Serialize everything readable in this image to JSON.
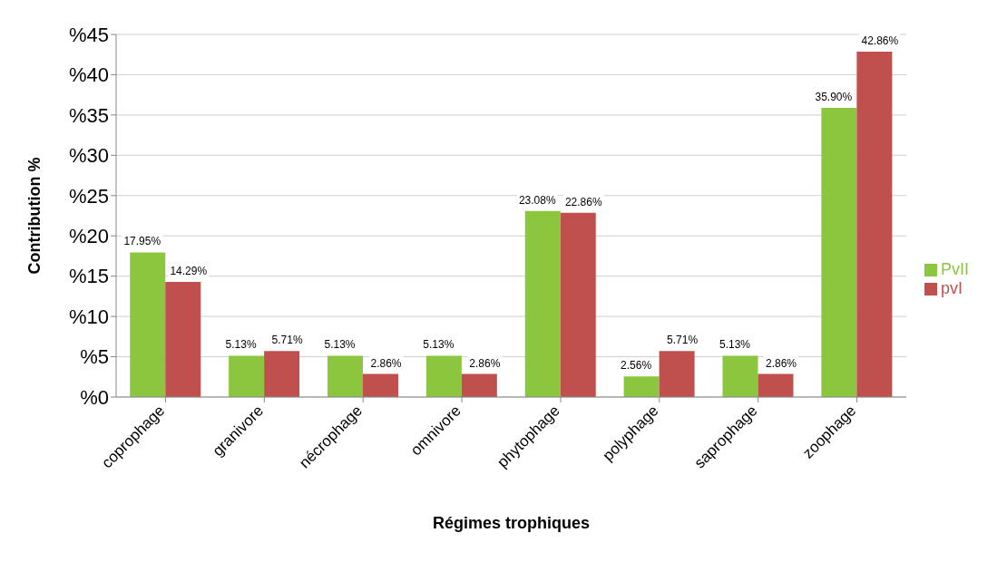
{
  "chart_data": {
    "type": "bar",
    "xlabel": "Régimes trophiques",
    "ylabel": "Contribution %",
    "categories": [
      "coprophage",
      "granivore",
      "nécrophage",
      "omnivore",
      "phytophage",
      "polyphage",
      "saprophage",
      "zoophage"
    ],
    "series": [
      {
        "name": "PvII",
        "color": "#8cc63f",
        "values": [
          17.95,
          5.13,
          5.13,
          5.13,
          23.08,
          2.56,
          5.13,
          35.9
        ],
        "value_labels": [
          "17.95%",
          "5.13%",
          "5.13%",
          "5.13%",
          "23.08%",
          "2.56%",
          "5.13%",
          "35.90%"
        ]
      },
      {
        "name": "pvI",
        "color": "#c0504d",
        "values": [
          14.29,
          5.71,
          2.86,
          2.86,
          22.86,
          5.71,
          2.86,
          42.86
        ],
        "value_labels": [
          "14.29%",
          "5.71%",
          "2.86%",
          "2.86%",
          "22.86%",
          "5.71%",
          "2.86%",
          "42.86%"
        ]
      }
    ],
    "ylim": [
      0,
      45
    ],
    "yticks": [
      {
        "value": 0,
        "label": "%0"
      },
      {
        "value": 5,
        "label": "%5"
      },
      {
        "value": 10,
        "label": "%10"
      },
      {
        "value": 15,
        "label": "%15"
      },
      {
        "value": 20,
        "label": "%20"
      },
      {
        "value": 25,
        "label": "%25"
      },
      {
        "value": 30,
        "label": "%30"
      },
      {
        "value": 35,
        "label": "%35"
      },
      {
        "value": 40,
        "label": "%40"
      },
      {
        "value": 45,
        "label": "%45"
      }
    ],
    "grid": "y",
    "legend": "right"
  }
}
